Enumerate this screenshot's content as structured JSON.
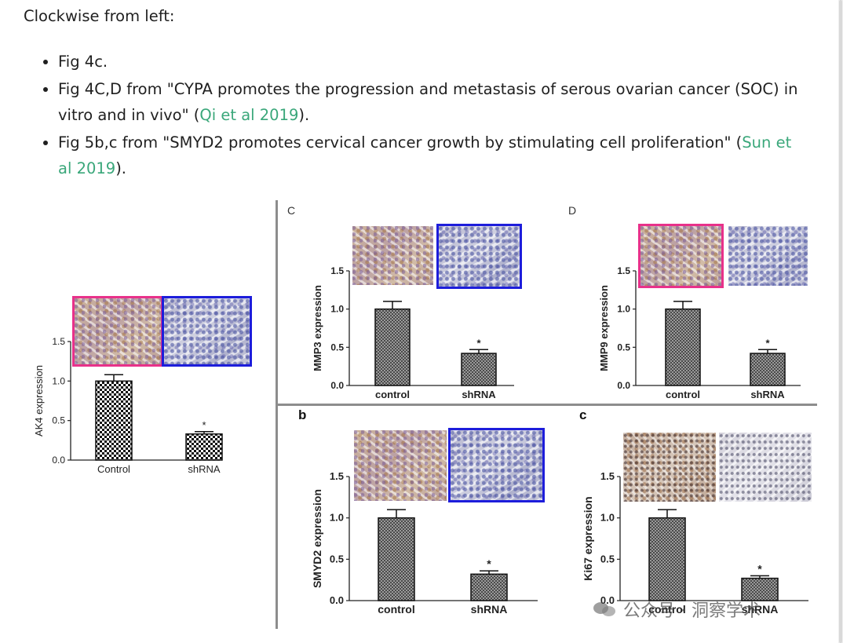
{
  "article": {
    "intro": "Clockwise from left:",
    "bullets": [
      {
        "text": "Fig 4c."
      },
      {
        "before": "Fig 4C,D from \"CYPA promotes the progression and metastasis of serous ovarian cancer (SOC) in vitro and in vivo\" (",
        "link": "Qi et al 2019",
        "after": ")."
      },
      {
        "before": "Fig 5b,c from \"SMYD2 promotes cervical cancer growth by stimulating cell proliferation\" (",
        "link": "Sun et al 2019",
        "after": ")."
      }
    ],
    "link_color": "#3aa77a"
  },
  "figure": {
    "panel_labels": {
      "C": "C",
      "D": "D",
      "b": "b",
      "c": "c"
    },
    "frame_colors": {
      "pink": "#e8318a",
      "blue": "#1d1ddb"
    },
    "star": "*"
  },
  "chart_data": [
    {
      "id": "ak4",
      "type": "bar",
      "ylabel": "AK4 expression",
      "categories": [
        "Control",
        "shRNA"
      ],
      "values": [
        1.0,
        0.33
      ],
      "errors": [
        0.08,
        0.03
      ],
      "yticks": [
        "0.0",
        "0.5",
        "1.0",
        "1.5"
      ],
      "ylim": [
        0,
        1.5
      ],
      "significance": [
        "",
        "*"
      ]
    },
    {
      "id": "mmp3",
      "type": "bar",
      "ylabel": "MMP3 expression",
      "categories": [
        "control",
        "shRNA"
      ],
      "values": [
        1.0,
        0.42
      ],
      "errors": [
        0.1,
        0.05
      ],
      "yticks": [
        "0.0",
        "0.5",
        "1.0",
        "1.5"
      ],
      "ylim": [
        0,
        1.5
      ],
      "significance": [
        "",
        "*"
      ]
    },
    {
      "id": "mmp9",
      "type": "bar",
      "ylabel": "MMP9 expression",
      "categories": [
        "control",
        "shRNA"
      ],
      "values": [
        1.0,
        0.42
      ],
      "errors": [
        0.1,
        0.05
      ],
      "yticks": [
        "0.0",
        "0.5",
        "1.0",
        "1.5"
      ],
      "ylim": [
        0,
        1.5
      ],
      "significance": [
        "",
        "*"
      ]
    },
    {
      "id": "smyd2",
      "type": "bar",
      "ylabel": "SMYD2 expression",
      "categories": [
        "control",
        "shRNA"
      ],
      "values": [
        1.0,
        0.32
      ],
      "errors": [
        0.1,
        0.04
      ],
      "yticks": [
        "0.0",
        "0.5",
        "1.0",
        "1.5"
      ],
      "ylim": [
        0,
        1.5
      ],
      "significance": [
        "",
        "*"
      ]
    },
    {
      "id": "ki67",
      "type": "bar",
      "ylabel": "Ki67 expression",
      "categories": [
        "control",
        "shRNA"
      ],
      "values": [
        1.0,
        0.27
      ],
      "errors": [
        0.1,
        0.03
      ],
      "yticks": [
        "0.0",
        "0.5",
        "1.0",
        "1.5"
      ],
      "ylim": [
        0,
        1.5
      ],
      "significance": [
        "",
        "*"
      ]
    }
  ],
  "watermark": {
    "text": "公众号 · 洞察学术"
  }
}
